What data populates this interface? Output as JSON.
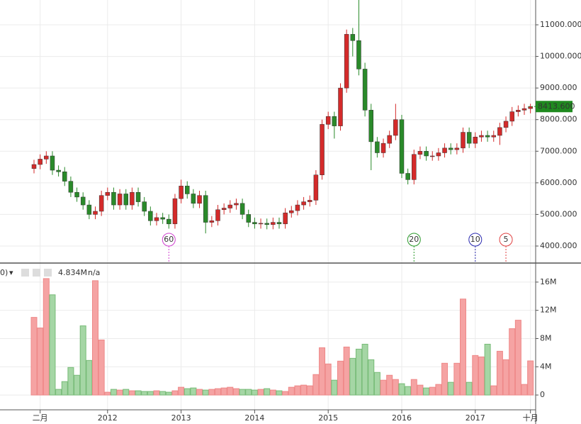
{
  "chart_data": [
    {
      "type": "candlestick",
      "open": [
        6450,
        6580,
        6750,
        6850,
        6400,
        6350,
        6050,
        5700,
        5550,
        5300,
        5000,
        5100,
        5600,
        5700,
        5300,
        5650,
        5300,
        5700,
        5400,
        5100,
        4800,
        4900,
        4850,
        4700,
        5500,
        5900,
        5650,
        5350,
        5600,
        4750,
        4800,
        5150,
        5200,
        5300,
        5350,
        5000,
        4750,
        4700,
        4720,
        4680,
        4750,
        4700,
        5050,
        5120,
        5300,
        5400,
        5450,
        6250,
        7850,
        8100,
        7800,
        9000,
        10700,
        10500,
        9600,
        8300,
        7300,
        6950,
        7250,
        7500,
        8000,
        6300,
        6100,
        6900,
        7000,
        6850,
        6850,
        6950,
        7100,
        7050,
        7100,
        7600,
        7250,
        7450,
        7500,
        7450,
        7500,
        7750,
        7950,
        8250,
        8300,
        8350
      ],
      "high": [
        6730,
        6900,
        7000,
        7000,
        6550,
        6500,
        6200,
        5850,
        5700,
        5450,
        5250,
        5750,
        5850,
        5850,
        5800,
        5800,
        5850,
        5850,
        5550,
        5250,
        5050,
        5050,
        5000,
        5650,
        6100,
        6050,
        5800,
        5750,
        5750,
        4950,
        5300,
        5350,
        5450,
        5500,
        5500,
        5150,
        4900,
        4870,
        4870,
        4900,
        4900,
        5200,
        5270,
        5450,
        5550,
        5600,
        6400,
        8000,
        8250,
        8250,
        9150,
        10850,
        10900,
        11800,
        9800,
        8500,
        7450,
        7400,
        7650,
        8500,
        8150,
        6450,
        7050,
        7150,
        7150,
        7000,
        7100,
        7250,
        7250,
        7250,
        7750,
        7750,
        7600,
        7650,
        7650,
        7650,
        7900,
        8100,
        8400,
        8450,
        8500,
        8500
      ],
      "low": [
        6300,
        6430,
        6600,
        6250,
        6200,
        5900,
        5550,
        5400,
        5150,
        4850,
        4850,
        4950,
        5450,
        5150,
        5150,
        5150,
        5150,
        5250,
        4950,
        4650,
        4650,
        4700,
        4550,
        4550,
        5350,
        5500,
        5200,
        5200,
        4400,
        4600,
        4650,
        5000,
        5050,
        5150,
        4850,
        4600,
        4550,
        4550,
        4530,
        4530,
        4550,
        4550,
        4900,
        4970,
        5150,
        5250,
        5300,
        6100,
        7700,
        7400,
        7650,
        8850,
        10000,
        9400,
        8100,
        6400,
        6800,
        6800,
        7100,
        7350,
        6150,
        5950,
        5950,
        6750,
        6700,
        6700,
        6700,
        6800,
        6900,
        6900,
        6950,
        7100,
        7100,
        7300,
        7300,
        7300,
        7200,
        7600,
        7800,
        8100,
        8150,
        8200
      ],
      "close": [
        6580,
        6750,
        6850,
        6400,
        6350,
        6050,
        5700,
        5550,
        5300,
        5000,
        5100,
        5600,
        5700,
        5300,
        5650,
        5300,
        5700,
        5400,
        5100,
        4800,
        4900,
        4850,
        4700,
        5500,
        5900,
        5650,
        5350,
        5600,
        4750,
        4800,
        5150,
        5200,
        5300,
        5350,
        5000,
        4750,
        4700,
        4720,
        4680,
        4750,
        4700,
        5050,
        5120,
        5300,
        5400,
        5450,
        6250,
        7850,
        8100,
        7800,
        9000,
        10700,
        10500,
        9600,
        8300,
        7300,
        6950,
        7250,
        7500,
        8000,
        6300,
        6100,
        6900,
        7000,
        6850,
        6850,
        6950,
        7100,
        7050,
        7100,
        7600,
        7250,
        7450,
        7500,
        7450,
        7500,
        7750,
        7950,
        8250,
        8300,
        8350,
        8413.6
      ],
      "up_color": "#d42a2a",
      "down_color": "#2a8a2a",
      "ylim": [
        3484,
        11785
      ],
      "yticks": [
        {
          "value": 4000,
          "label": "4000.000"
        },
        {
          "value": 5000,
          "label": "5000.000"
        },
        {
          "value": 6000,
          "label": "6000.000"
        },
        {
          "value": 7000,
          "label": "7000.000"
        },
        {
          "value": 8000,
          "label": "8000.000"
        },
        {
          "value": 9000,
          "label": "9000.000"
        },
        {
          "value": 10000,
          "label": "10000.000"
        },
        {
          "value": 11000,
          "label": "11000.000"
        }
      ],
      "last_price": {
        "value": 8413.6,
        "label": "8413.600"
      },
      "annotations": [
        {
          "label": "60",
          "color": "#d040d0"
        },
        {
          "label": "20",
          "color": "#2a9a2a"
        },
        {
          "label": "10",
          "color": "#2a2ab0"
        },
        {
          "label": "5",
          "color": "#e04040"
        }
      ],
      "grid": true
    },
    {
      "type": "bar",
      "categories": [
        null,
        "二月",
        null,
        null,
        null,
        null,
        null,
        null,
        null,
        null,
        null,
        null,
        "2012",
        null,
        null,
        null,
        null,
        null,
        null,
        null,
        null,
        null,
        null,
        null,
        "2013",
        null,
        null,
        null,
        null,
        null,
        null,
        null,
        null,
        null,
        null,
        null,
        "2014",
        null,
        null,
        null,
        null,
        null,
        null,
        null,
        null,
        null,
        null,
        null,
        "2015",
        null,
        null,
        null,
        null,
        null,
        null,
        null,
        null,
        null,
        null,
        null,
        "2016",
        null,
        null,
        null,
        null,
        null,
        null,
        null,
        null,
        null,
        null,
        null,
        "2017",
        null,
        null,
        null,
        null,
        null,
        null,
        null,
        null,
        "十月"
      ],
      "values": [
        11000000,
        9500000,
        16500000,
        14200000,
        800000,
        1900000,
        3900000,
        2800000,
        9800000,
        4900000,
        16200000,
        7800000,
        400000,
        800000,
        700000,
        800000,
        600000,
        600000,
        500000,
        500000,
        600000,
        500000,
        400000,
        600000,
        1100000,
        900000,
        1000000,
        800000,
        700000,
        800000,
        900000,
        1000000,
        1100000,
        900000,
        800000,
        800000,
        700000,
        800000,
        900000,
        700000,
        600000,
        500000,
        1100000,
        1300000,
        1400000,
        1300000,
        2900000,
        6700000,
        4400000,
        2100000,
        4800000,
        6800000,
        5200000,
        6500000,
        7200000,
        5000000,
        3200000,
        2100000,
        2800000,
        2200000,
        1600000,
        1200000,
        2200000,
        1400000,
        1000000,
        1100000,
        1500000,
        4500000,
        1800000,
        4500000,
        13600000,
        1800000,
        5600000,
        5400000,
        7200000,
        1300000,
        6200000,
        5000000,
        9400000,
        10600000,
        1500000,
        4834000
      ],
      "up_color": "#f5a3a3",
      "down_color": "#a5d6a5",
      "ylim": [
        -2100000,
        18600000
      ],
      "yticks": [
        0,
        {
          "value": 4000000,
          "label": "4M"
        },
        {
          "value": 8000000,
          "label": "8M"
        },
        {
          "value": 12000000,
          "label": "12M"
        },
        {
          "value": 16000000,
          "label": "16M"
        }
      ],
      "legend": {
        "prefix": "0)",
        "value": "4.834M",
        "status": "n/a"
      },
      "grid": true
    }
  ]
}
